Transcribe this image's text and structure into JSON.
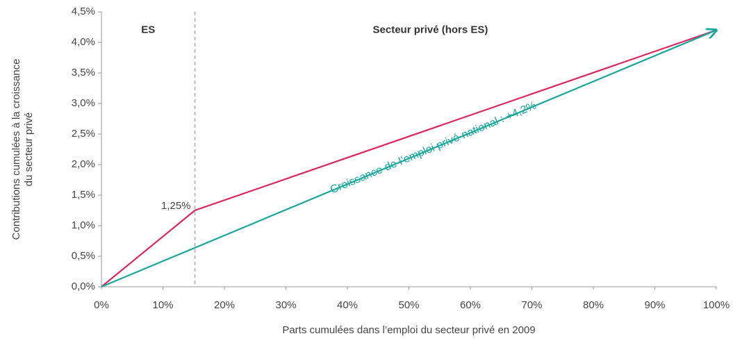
{
  "chart_data": {
    "type": "line",
    "xlabel": "Parts cumulées dans l’emploi du secteur privé en 2009",
    "ylabel": [
      "Contributions cumulées à la croissance",
      "du secteur privé"
    ],
    "x": [
      0,
      15.2,
      100
    ],
    "series": [
      {
        "color": "#e0245e",
        "values": [
          0,
          1.25,
          4.2
        ],
        "value_labels": [
          null,
          "1,25%",
          null
        ]
      },
      {
        "color": "#16a89e",
        "values": [
          0,
          null,
          4.2
        ]
      }
    ],
    "vline": {
      "x": 15.2,
      "color": "#bbbbbb"
    },
    "annotations": [
      {
        "text": "ES",
        "x": 7.6,
        "y": 4.2
      },
      {
        "text": "Secteur privé (hors ES)",
        "x": 53.5,
        "y": 4.2
      },
      {
        "text": "Croissance de l’emploi privé national : +4,2%",
        "x": 54,
        "y": 2.27
      }
    ],
    "xlim": [
      0,
      100
    ],
    "xticks": [
      {
        "value": 0,
        "label": "0%"
      },
      {
        "value": 10,
        "label": "10%"
      },
      {
        "value": 20,
        "label": "20%"
      },
      {
        "value": 30,
        "label": "30%"
      },
      {
        "value": 40,
        "label": "40%"
      },
      {
        "value": 50,
        "label": "50%"
      },
      {
        "value": 60,
        "label": "60%"
      },
      {
        "value": 70,
        "label": "70%"
      },
      {
        "value": 80,
        "label": "80%"
      },
      {
        "value": 90,
        "label": "90%"
      },
      {
        "value": 100,
        "label": "100%"
      }
    ],
    "ylim": [
      0,
      4.5
    ],
    "yticks": [
      {
        "value": 0,
        "label": "0,0%"
      },
      {
        "value": 0.5,
        "label": "0,5%"
      },
      {
        "value": 1,
        "label": "1,0%"
      },
      {
        "value": 1.5,
        "label": "1,5%"
      },
      {
        "value": 2,
        "label": "2,0%"
      },
      {
        "value": 2.5,
        "label": "2,5%"
      },
      {
        "value": 3,
        "label": "3,0%"
      },
      {
        "value": 3.5,
        "label": "3,5%"
      },
      {
        "value": 4,
        "label": "4,0%"
      },
      {
        "value": 4.5,
        "label": "4,5%"
      }
    ],
    "grid": false
  }
}
